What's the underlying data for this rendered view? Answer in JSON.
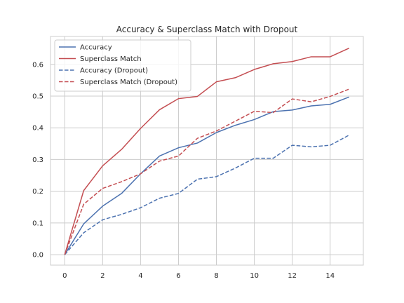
{
  "chart_data": {
    "type": "line",
    "title": "Accuracy & Superclass Match with Dropout",
    "xlabel": "",
    "ylabel": "",
    "xlim": [
      -0.75,
      15.75
    ],
    "ylim": [
      -0.033,
      0.688
    ],
    "xticks": [
      0,
      2,
      4,
      6,
      8,
      10,
      12,
      14
    ],
    "yticks": [
      0.0,
      0.1,
      0.2,
      0.3,
      0.4,
      0.5,
      0.6
    ],
    "xtick_labels": [
      "0",
      "2",
      "4",
      "6",
      "8",
      "10",
      "12",
      "14"
    ],
    "ytick_labels": [
      "0.0",
      "0.1",
      "0.2",
      "0.3",
      "0.4",
      "0.5",
      "0.6"
    ],
    "grid": true,
    "legend_position": "top-left",
    "x": [
      0,
      1,
      2,
      3,
      4,
      5,
      6,
      7,
      8,
      9,
      10,
      11,
      12,
      13,
      14,
      15
    ],
    "series": [
      {
        "name": "Accuracy",
        "color": "#4c72b0",
        "style": "solid",
        "values": [
          0.0,
          0.097,
          0.153,
          0.193,
          0.255,
          0.311,
          0.337,
          0.352,
          0.385,
          0.408,
          0.426,
          0.451,
          0.456,
          0.469,
          0.474,
          0.497
        ]
      },
      {
        "name": "Superclass Match",
        "color": "#c44e52",
        "style": "solid",
        "values": [
          0.0,
          0.202,
          0.28,
          0.332,
          0.398,
          0.457,
          0.492,
          0.499,
          0.545,
          0.558,
          0.584,
          0.602,
          0.609,
          0.624,
          0.624,
          0.651
        ]
      },
      {
        "name": "Accuracy (Dropout)",
        "color": "#4c72b0",
        "style": "dashed",
        "values": [
          0.0,
          0.069,
          0.11,
          0.127,
          0.148,
          0.178,
          0.193,
          0.238,
          0.246,
          0.273,
          0.304,
          0.304,
          0.345,
          0.34,
          0.345,
          0.377
        ]
      },
      {
        "name": "Superclass Match (Dropout)",
        "color": "#c44e52",
        "style": "dashed",
        "values": [
          0.0,
          0.159,
          0.209,
          0.23,
          0.255,
          0.295,
          0.311,
          0.367,
          0.39,
          0.421,
          0.452,
          0.448,
          0.491,
          0.482,
          0.499,
          0.522
        ]
      }
    ]
  }
}
